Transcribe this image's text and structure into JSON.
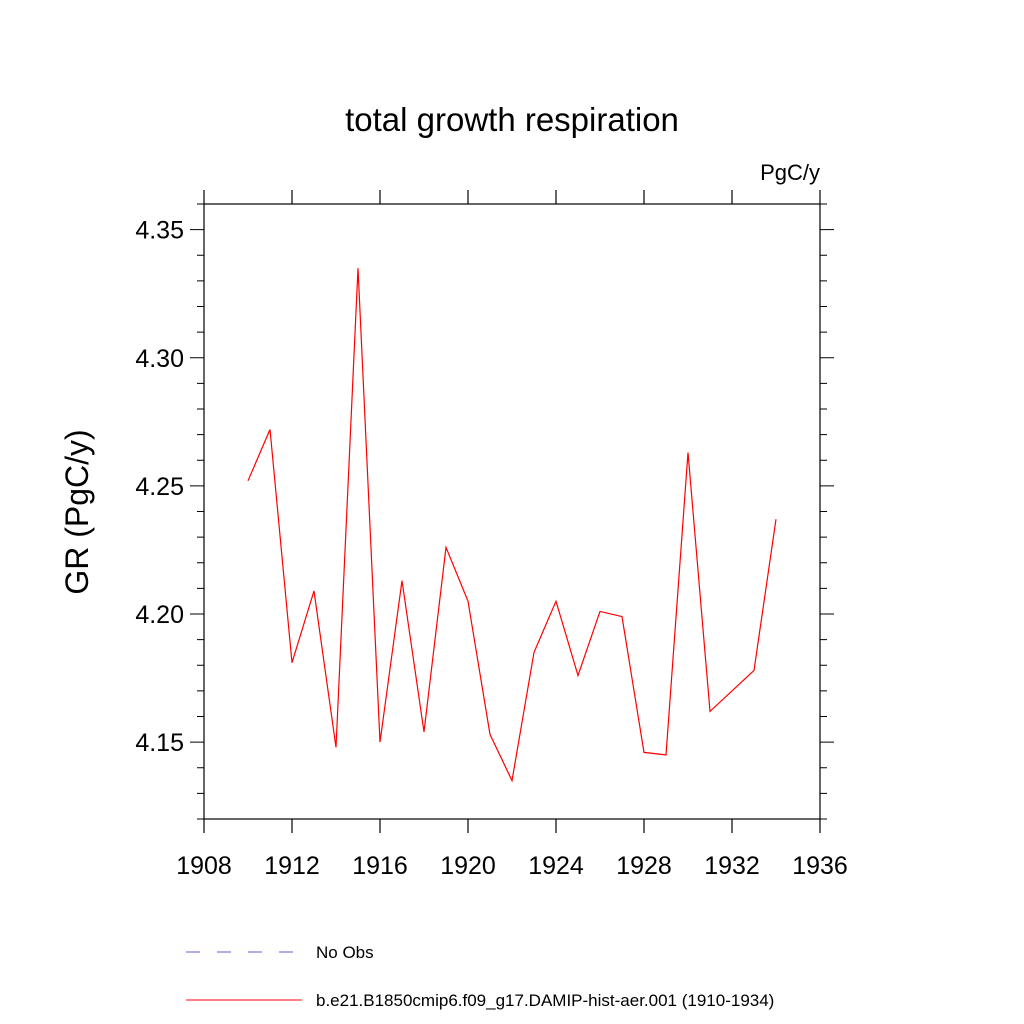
{
  "chart_data": {
    "type": "line",
    "title": "total growth respiration",
    "units": "PgC/y",
    "ylabel": "GR  (PgC/y)",
    "xlabel": "",
    "xlim": [
      1908,
      1936
    ],
    "ylim": [
      4.12,
      4.36
    ],
    "xticks": [
      1908,
      1912,
      1916,
      1920,
      1924,
      1928,
      1932,
      1936
    ],
    "xtick_labels": [
      "1908",
      "1912",
      "1916",
      "1920",
      "1924",
      "1928",
      "1932",
      "1936"
    ],
    "yticks": [
      4.15,
      4.2,
      4.25,
      4.3,
      4.35
    ],
    "ytick_labels": [
      "4.15",
      "4.20",
      "4.25",
      "4.30",
      "4.35"
    ],
    "grid": false,
    "legend_position": "bottom",
    "series": [
      {
        "name": "b.e21.B1850cmip6.f09_g17.DAMIP-hist-aer.001 (1910-1934)",
        "color": "#ff0000",
        "style": "solid",
        "x": [
          1910,
          1911,
          1912,
          1913,
          1914,
          1915,
          1916,
          1917,
          1918,
          1919,
          1920,
          1921,
          1922,
          1923,
          1924,
          1925,
          1926,
          1927,
          1928,
          1929,
          1930,
          1931,
          1932,
          1933,
          1934
        ],
        "y": [
          4.252,
          4.272,
          4.181,
          4.209,
          4.148,
          4.335,
          4.15,
          4.213,
          4.154,
          4.226,
          4.205,
          4.153,
          4.135,
          4.185,
          4.205,
          4.176,
          4.201,
          4.199,
          4.146,
          4.145,
          4.263,
          4.162,
          4.17,
          4.178,
          4.237
        ]
      }
    ],
    "legend": [
      {
        "label": "No Obs",
        "color": "#6a5acd",
        "style": "dashed"
      },
      {
        "label": "b.e21.B1850cmip6.f09_g17.DAMIP-hist-aer.001 (1910-1934)",
        "color": "#ff0000",
        "style": "solid"
      }
    ]
  }
}
